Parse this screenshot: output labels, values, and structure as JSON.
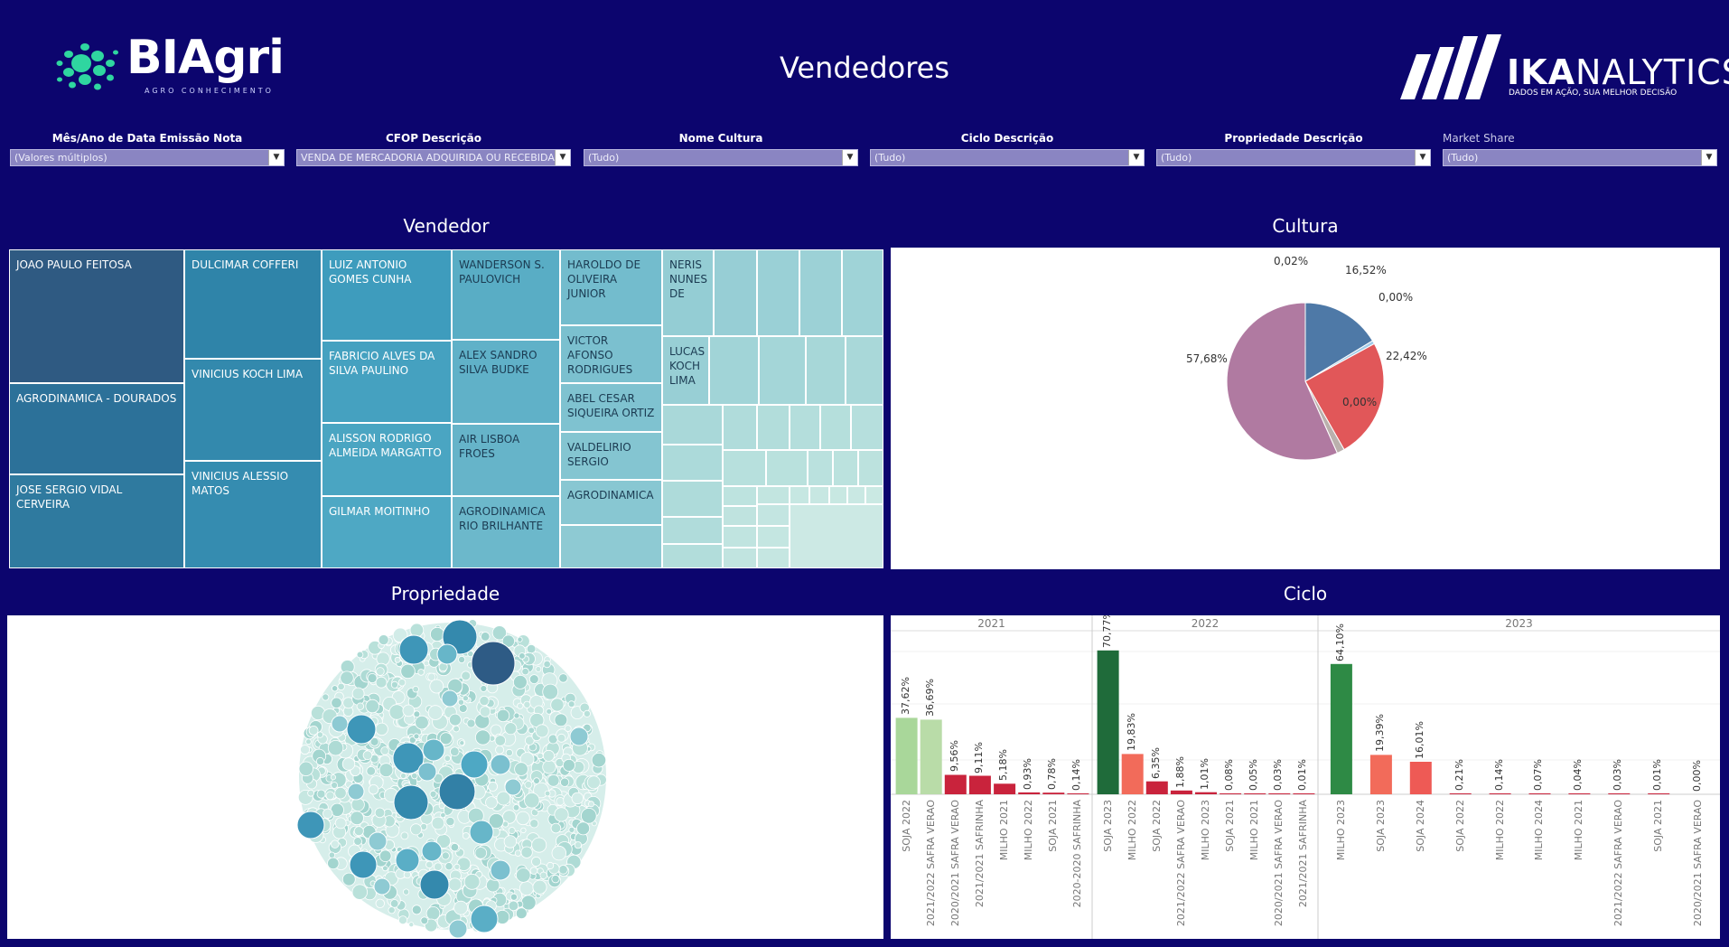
{
  "header": {
    "brand_name": "BIAgri",
    "brand_tagline": "AGRO CONHECIMENTO",
    "title": "Vendedores",
    "partner_name_bold": "IKA",
    "partner_name_rest": "NALYTICS",
    "partner_tagline": "DADOS EM AÇÃO, SUA MELHOR DECISÃO"
  },
  "filters": [
    {
      "label": "Mês/Ano de Data Emissão Nota",
      "value": "(Valores múltiplos)"
    },
    {
      "label": "CFOP Descrição",
      "value": "VENDA DE MERCADORIA ADQUIRIDA OU RECEBIDA ..."
    },
    {
      "label": "Nome Cultura",
      "value": "(Tudo)"
    },
    {
      "label": "Ciclo Descrição",
      "value": "(Tudo)"
    },
    {
      "label": "Propriedade Descrição",
      "value": "(Tudo)"
    },
    {
      "label": "Market Share",
      "value": "(Tudo)"
    }
  ],
  "sections": {
    "vendedor": "Vendedor",
    "cultura": "Cultura",
    "propriedade": "Propriedade",
    "ciclo": "Ciclo"
  },
  "treemap": {
    "labels": [
      "JOAO PAULO FEITOSA",
      "AGRODINAMICA - DOURADOS",
      "JOSE SERGIO VIDAL CERVEIRA",
      "DULCIMAR COFFERI",
      "VINICIUS KOCH LIMA",
      "VINICIUS ALESSIO MATOS",
      "LUIZ ANTONIO GOMES CUNHA",
      "FABRICIO ALVES DA SILVA PAULINO",
      "ALISSON RODRIGO ALMEIDA MARGATTO",
      "GILMAR MOITINHO",
      "WANDERSON S. PAULOVICH",
      "ALEX SANDRO SILVA BUDKE",
      "AIR LISBOA FROES",
      "AGRODINAMICA RIO BRILHANTE",
      "HAROLDO DE OLIVEIRA JUNIOR",
      "VICTOR AFONSO RODRIGUES",
      "ABEL CESAR SIQUEIRA ORTIZ",
      "VALDELIRIO SERGIO",
      "AGRODINAMICA",
      "NERIS NUNES DE",
      "LUCAS KOCH LIMA"
    ]
  },
  "pie": {
    "labels": [
      "0,02%",
      "16,52%",
      "0,00%",
      "22,42%",
      "0,00%",
      "57,68%"
    ]
  },
  "chart_data": {
    "type": "bar",
    "ylim": [
      0,
      80
    ],
    "groups": [
      {
        "year": "2021",
        "categories": [
          "SOJA 2022",
          "2021/2022 SAFRA VERAO",
          "2020/2021 SAFRA VERAO",
          "2021/2021 SAFRINHA",
          "MILHO 2021",
          "MILHO 2022",
          "SOJA 2021",
          "2020-2020 SAFRINHA"
        ],
        "values": [
          37.62,
          36.69,
          9.56,
          9.11,
          5.18,
          0.93,
          0.78,
          0.14
        ],
        "labels": [
          "37,62%",
          "36,69%",
          "9,56%",
          "9,11%",
          "5,18%",
          "0,93%",
          "0,78%",
          "0,14%"
        ],
        "colors": [
          "#a9d79a",
          "#b9dca8",
          "#c9233c",
          "#c9233c",
          "#c9233c",
          "#c9233c",
          "#c9233c",
          "#c9233c"
        ]
      },
      {
        "year": "2022",
        "categories": [
          "SOJA 2023",
          "MILHO 2022",
          "SOJA 2022",
          "2021/2022 SAFRA VERAO",
          "MILHO 2023",
          "SOJA 2021",
          "MILHO 2021",
          "2020/2021 SAFRA VERAO",
          "2021/2021 SAFRINHA"
        ],
        "values": [
          70.77,
          19.83,
          6.35,
          1.88,
          1.01,
          0.08,
          0.05,
          0.03,
          0.01
        ],
        "labels": [
          "70,77%",
          "19,83%",
          "6,35%",
          "1,88%",
          "1,01%",
          "0,08%",
          "0,05%",
          "0,03%",
          "0,01%"
        ],
        "colors": [
          "#1f6b3a",
          "#f26b5a",
          "#c9233c",
          "#c9233c",
          "#c9233c",
          "#c9233c",
          "#c9233c",
          "#c9233c",
          "#c9233c"
        ]
      },
      {
        "year": "2023",
        "categories": [
          "MILHO 2023",
          "SOJA 2023",
          "SOJA 2024",
          "SOJA 2022",
          "MILHO 2022",
          "MILHO 2024",
          "MILHO 2021",
          "2021/2022 SAFRA VERAO",
          "SOJA 2021",
          "2020/2021 SAFRA VERAO"
        ],
        "values": [
          64.1,
          19.39,
          16.01,
          0.21,
          0.14,
          0.07,
          0.04,
          0.03,
          0.01,
          0.0
        ],
        "labels": [
          "64,10%",
          "19,39%",
          "16,01%",
          "0,21%",
          "0,14%",
          "0,07%",
          "0,04%",
          "0,03%",
          "0,01%",
          "0,00%"
        ],
        "colors": [
          "#2e8a45",
          "#f26b5a",
          "#ee5a55",
          "#c9233c",
          "#c9233c",
          "#c9233c",
          "#c9233c",
          "#c9233c",
          "#c9233c",
          "#c9233c"
        ]
      }
    ]
  }
}
